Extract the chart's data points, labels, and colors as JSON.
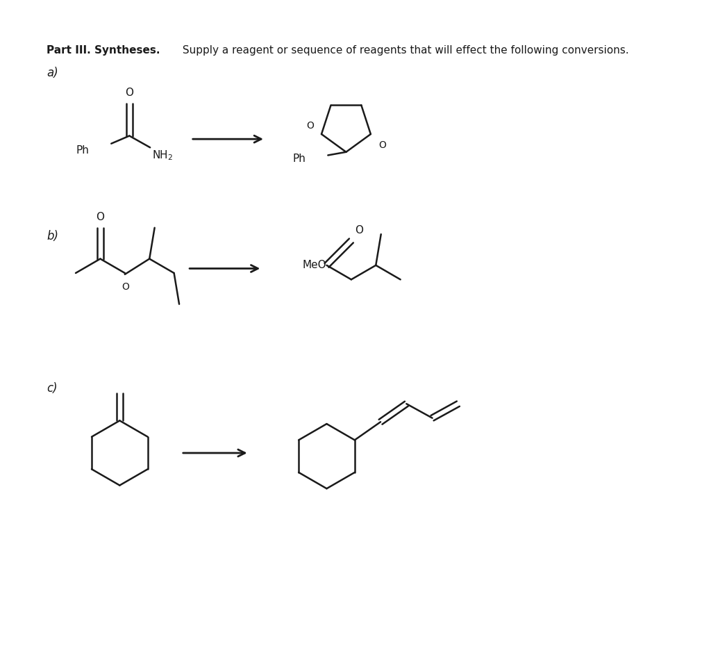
{
  "title_bold": "Part III. Syntheses.",
  "title_normal": " Supply a reagent or sequence of reagents that will effect the following conversions.",
  "background_color": "#ffffff",
  "line_color": "#1a1a1a",
  "text_color": "#1a1a1a",
  "label_a": "a)",
  "label_b": "b)",
  "label_c": "c)",
  "figsize": [
    10.24,
    9.5
  ],
  "dpi": 100
}
